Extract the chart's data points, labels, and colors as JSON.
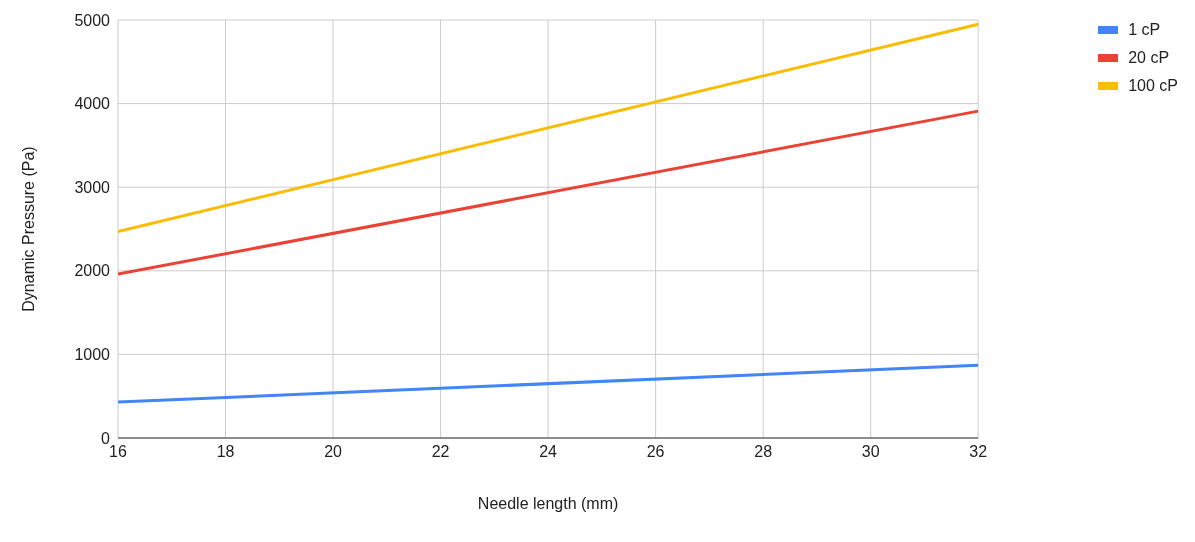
{
  "chart_data": {
    "type": "line",
    "xlabel": "Needle length (mm)",
    "ylabel": "Dynamic Pressure (Pa)",
    "x": [
      16,
      32
    ],
    "series": [
      {
        "name": "1 cP",
        "color": "#4285f4",
        "values": [
          430,
          870
        ]
      },
      {
        "name": "20 cP",
        "color": "#ea4335",
        "values": [
          1960,
          3910
        ]
      },
      {
        "name": "100 cP",
        "color": "#fbbc04",
        "values": [
          2470,
          4950
        ]
      }
    ],
    "xlim": [
      16,
      32
    ],
    "xticks": [
      16,
      18,
      20,
      22,
      24,
      26,
      28,
      30,
      32
    ],
    "ylim": [
      0,
      5000
    ],
    "yticks": [
      0,
      1000,
      2000,
      3000,
      4000,
      5000
    ],
    "grid": true,
    "legend": "top right"
  }
}
